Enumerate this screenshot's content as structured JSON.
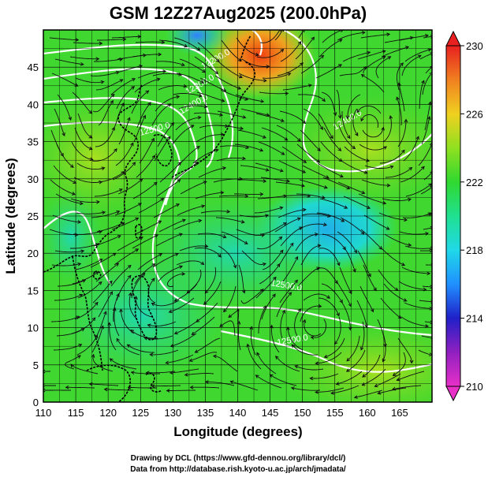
{
  "figure": {
    "title": "GSM 12Z27Aug2025 (200.0hPa)",
    "xlabel": "Longitude (degrees)",
    "ylabel": "Latitude  (degrees)",
    "credit_line1": "Drawing by DCL (https://www.gfd-dennou.org/library/dcl/)",
    "credit_line2": "Data from http://database.rish.kyoto-u.ac.jp/arch/jmadata/"
  },
  "map": {
    "lon_range": [
      110,
      170
    ],
    "lat_range": [
      0,
      50
    ],
    "lon_ticks": [
      "110",
      "115",
      "120",
      "125",
      "130",
      "135",
      "140",
      "145",
      "150",
      "155",
      "160",
      "165"
    ],
    "lat_ticks": [
      "0",
      "5",
      "10",
      "15",
      "20",
      "25",
      "30",
      "35",
      "40",
      "45"
    ],
    "contour_labels": [
      "12200.0",
      "12300.0",
      "12400.0",
      "12500.0",
      "12400.0",
      "12500.0",
      "12500.0"
    ],
    "colors": {
      "land_outline": "#000000",
      "contour": "#ffffff",
      "streamline": "#111111"
    }
  },
  "colorbar": {
    "ticks": [
      "230",
      "226",
      "222",
      "218",
      "214",
      "210"
    ],
    "min": 210,
    "max": 230
  }
}
